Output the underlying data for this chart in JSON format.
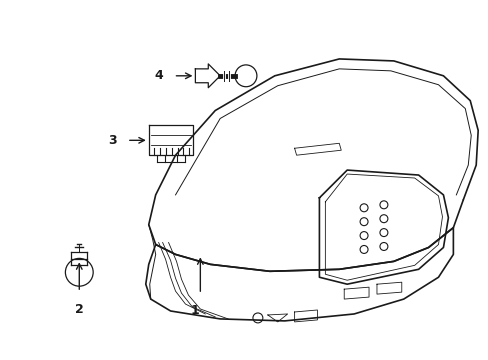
{
  "background_color": "#ffffff",
  "line_color": "#1a1a1a",
  "figsize": [
    4.89,
    3.6
  ],
  "dpi": 100,
  "callout_fontsize": 9,
  "lw_main": 1.2,
  "lw_thin": 0.7,
  "lw_detail": 0.6
}
